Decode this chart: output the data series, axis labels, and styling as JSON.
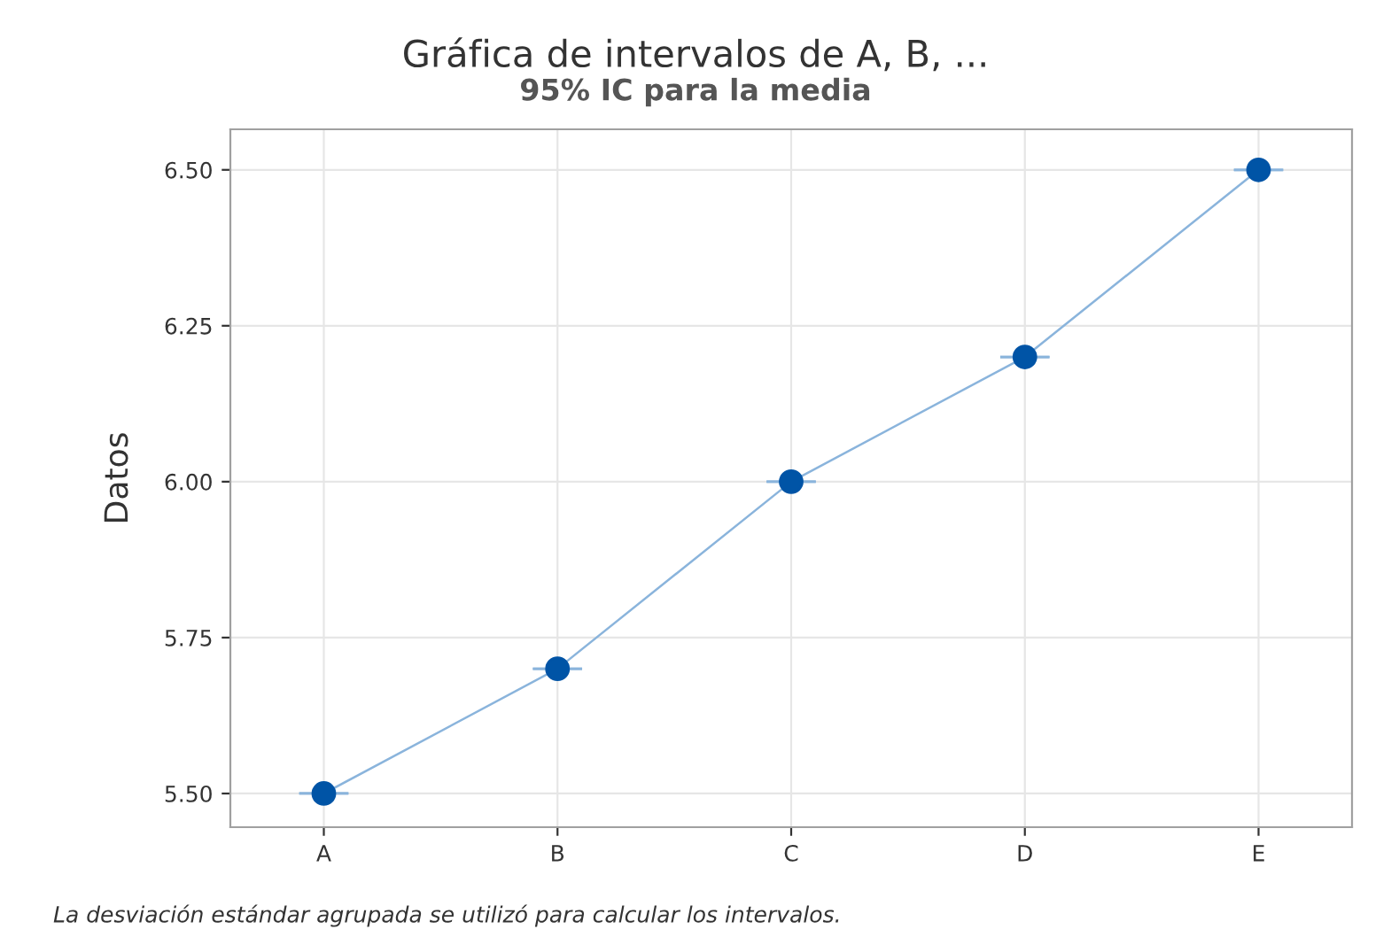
{
  "chart_data": {
    "type": "line",
    "title": "Gráfica de intervalos de A, B, ...",
    "subtitle": "95% IC para la media",
    "ylabel": "Datos",
    "categories": [
      "A",
      "B",
      "C",
      "D",
      "E"
    ],
    "series": [
      {
        "color": "#0054a6",
        "values": [
          5.5,
          5.7,
          6.0,
          6.2,
          6.5
        ],
        "errors": [
          0,
          0,
          0,
          0,
          0
        ]
      }
    ],
    "ylim": [
      5.446,
      6.565
    ],
    "yticks": [
      {
        "value": 5.5,
        "label": "5.50"
      },
      {
        "value": 5.75,
        "label": "5.75"
      },
      {
        "value": 6.0,
        "label": "6.00"
      },
      {
        "value": 6.25,
        "label": "6.25"
      },
      {
        "value": 6.5,
        "label": "6.50"
      }
    ],
    "grid": true,
    "marker": "circle",
    "line_style": "solid",
    "annotations": [
      "La desviación estándar agrupada se utilizó para calcular los intervalos."
    ]
  }
}
